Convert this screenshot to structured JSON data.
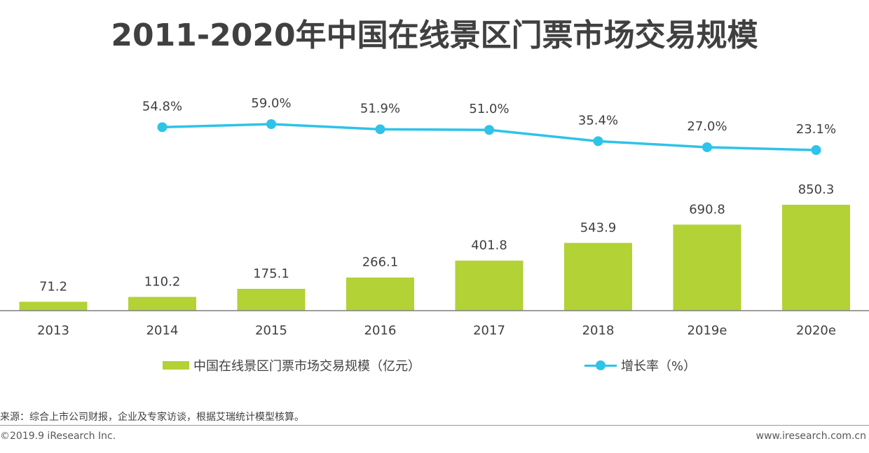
{
  "title": "2011-2020年中国在线景区门票市场交易规模",
  "colors": {
    "bar": "#b2d235",
    "line": "#2ec3e8",
    "axis": "#7f7f7f",
    "text": "#404040"
  },
  "chart_data": {
    "type": "bar",
    "title": "2011-2020年中国在线景区门票市场交易规模",
    "categories": [
      "2013",
      "2014",
      "2015",
      "2016",
      "2017",
      "2018",
      "2019e",
      "2020e"
    ],
    "series": [
      {
        "name": "中国在线景区门票市场交易规模（亿元）",
        "type": "bar",
        "values": [
          71.2,
          110.2,
          175.1,
          266.1,
          401.8,
          543.9,
          690.8,
          850.3
        ],
        "labels": [
          "71.2",
          "110.2",
          "175.1",
          "266.1",
          "401.8",
          "543.9",
          "690.8",
          "850.3"
        ]
      },
      {
        "name": "增长率（%）",
        "type": "line",
        "values": [
          null,
          54.8,
          59.0,
          51.9,
          51.0,
          35.4,
          27.0,
          23.1
        ],
        "labels": [
          "",
          "54.8%",
          "59.0%",
          "51.9%",
          "51.0%",
          "35.4%",
          "27.0%",
          "23.1%"
        ]
      }
    ],
    "xlabel": "",
    "ylabel": "",
    "legend": "bottom",
    "grid": false
  },
  "legend": {
    "bar_label": "中国在线景区门票市场交易规模（亿元）",
    "line_label": "增长率（%）"
  },
  "source": "来源：综合上市公司财报，企业及专家访谈，根据艾瑞统计模型核算。",
  "copyright": "©2019.9 iResearch Inc.",
  "website": "www.iresearch.com.cn"
}
